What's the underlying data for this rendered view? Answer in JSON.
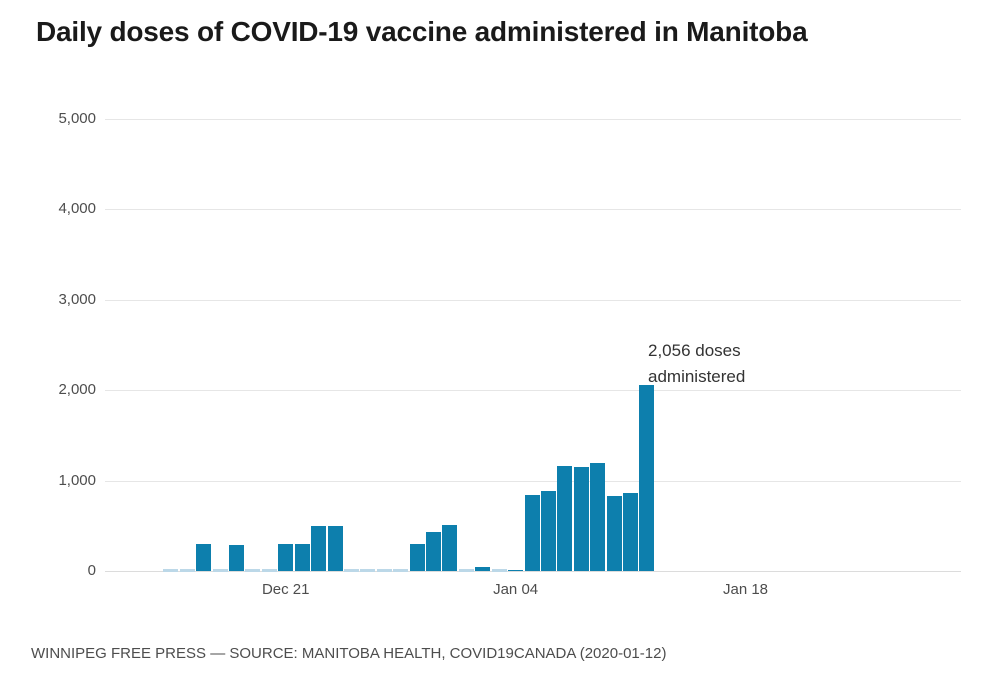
{
  "title": "Daily doses of COVID-19 vaccine administered in Manitoba",
  "footer": "WINNIPEG FREE PRESS — SOURCE: MANITOBA HEALTH, COVID19CANADA (2020-01-12)",
  "colors": {
    "bar": "#0d7fad",
    "zero_bar": "#bcd8e8",
    "grid": "#e6e6e6",
    "title_text": "#1a1a1a",
    "axis_text": "#4d4d4d",
    "annotation_text": "#333333"
  },
  "chart_data": {
    "type": "bar",
    "title": "Daily doses of COVID-19 vaccine administered in Manitoba",
    "xlabel": "",
    "ylabel": "",
    "ylim": [
      0,
      5000
    ],
    "grid": "horizontal",
    "legend": "none",
    "x": [
      "Dec 14",
      "Dec 15",
      "Dec 16",
      "Dec 17",
      "Dec 18",
      "Dec 19",
      "Dec 20",
      "Dec 21",
      "Dec 22",
      "Dec 23",
      "Dec 24",
      "Dec 25",
      "Dec 26",
      "Dec 27",
      "Dec 28",
      "Dec 29",
      "Dec 30",
      "Dec 31",
      "Jan 01",
      "Jan 02",
      "Jan 03",
      "Jan 04",
      "Jan 05",
      "Jan 06",
      "Jan 07",
      "Jan 08",
      "Jan 09",
      "Jan 10",
      "Jan 11",
      "Jan 12"
    ],
    "values": [
      0,
      0,
      300,
      0,
      290,
      0,
      0,
      297,
      295,
      500,
      495,
      0,
      0,
      0,
      0,
      300,
      430,
      512,
      0,
      40,
      0,
      15,
      845,
      880,
      1165,
      1155,
      1195,
      830,
      860,
      2056
    ],
    "yticks": [
      0,
      1000,
      2000,
      3000,
      4000,
      5000
    ],
    "ytick_labels": [
      "0",
      "1,000",
      "2,000",
      "3,000",
      "4,000",
      "5,000"
    ],
    "xticks": [
      {
        "label": "Dec 21",
        "index": 7
      },
      {
        "label": "Jan 04",
        "index": 21
      },
      {
        "label": "Jan 18",
        "index": 35
      }
    ],
    "annotation": {
      "lines": [
        "2,056 doses",
        "administered"
      ],
      "value": 2056,
      "target_date": "Jan 12"
    }
  }
}
